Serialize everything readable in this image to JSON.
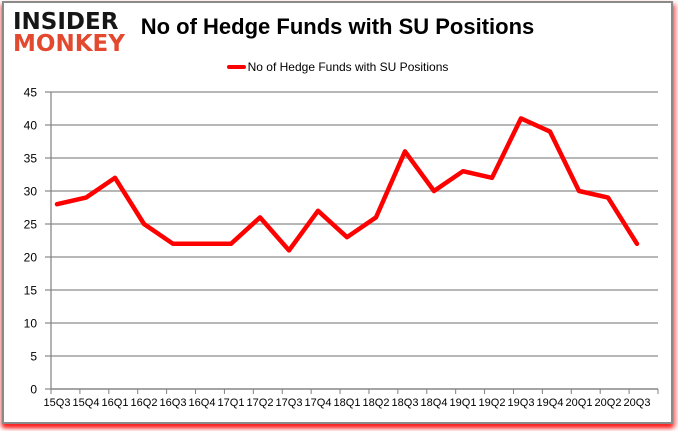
{
  "brand": {
    "line1": "INSIDER",
    "line2": "MONKEY",
    "line1_color": "#161616",
    "line2_color": "#e2492f"
  },
  "header": {
    "title": "No of Hedge Funds with SU Positions"
  },
  "legend": {
    "label": "No of Hedge Funds with SU Positions",
    "marker_color": "#ff0000"
  },
  "colors": {
    "line": "#ff0000",
    "grid": "#8c8c8c",
    "axis": "#808080",
    "text": "#000000"
  },
  "chart_data": {
    "type": "line",
    "title": "No of Hedge Funds with SU Positions",
    "xlabel": "",
    "ylabel": "",
    "categories": [
      "15Q3",
      "15Q4",
      "16Q1",
      "16Q2",
      "16Q3",
      "16Q4",
      "17Q1",
      "17Q2",
      "17Q3",
      "17Q4",
      "18Q1",
      "18Q2",
      "18Q3",
      "18Q4",
      "19Q1",
      "19Q2",
      "19Q3",
      "19Q4",
      "20Q1",
      "20Q2",
      "20Q3"
    ],
    "series": [
      {
        "name": "No of Hedge Funds with SU Positions",
        "color": "#ff0000",
        "values": [
          28,
          29,
          32,
          25,
          22,
          22,
          22,
          26,
          21,
          27,
          23,
          26,
          36,
          30,
          33,
          32,
          41,
          39,
          30,
          29,
          22
        ]
      }
    ],
    "ylim": [
      0,
      45
    ],
    "y_ticks": [
      0,
      5,
      10,
      15,
      20,
      25,
      30,
      35,
      40,
      45
    ],
    "grid": true,
    "legend_position": "top-center"
  }
}
